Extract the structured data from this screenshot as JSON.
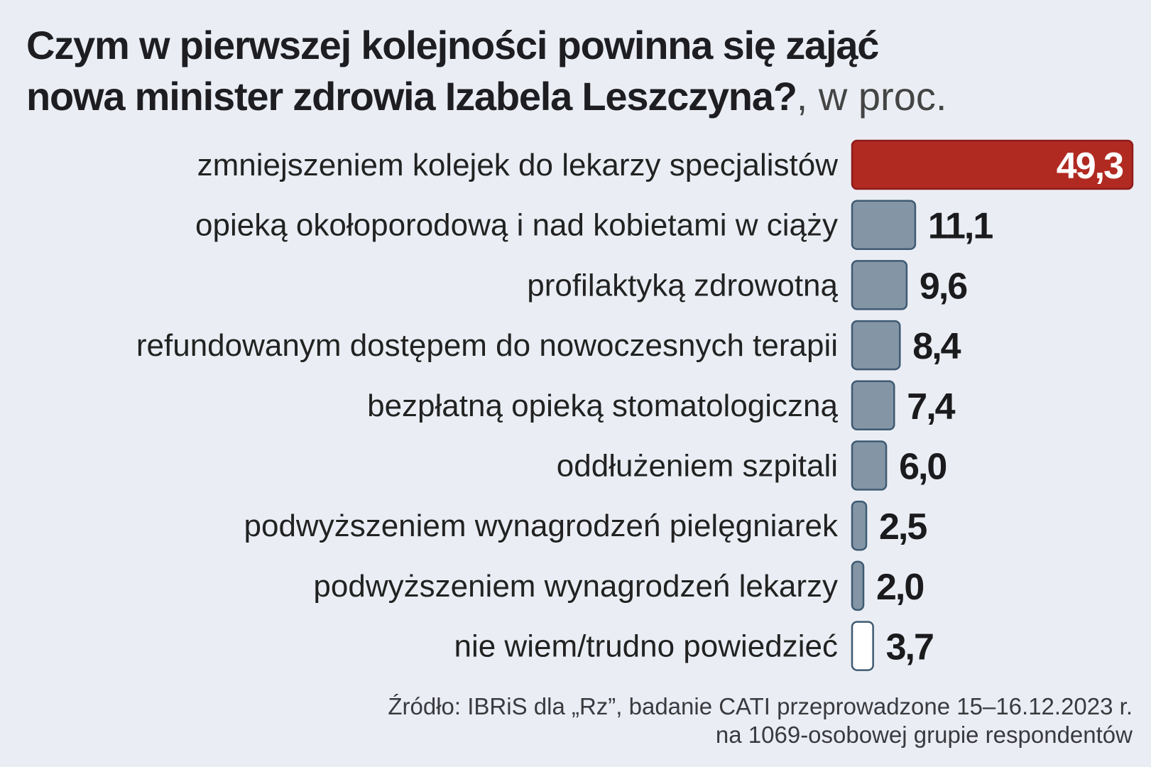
{
  "chart_data": {
    "type": "bar",
    "orientation": "horizontal",
    "title": "Czym w pierwszej kolejności powinna  się zająć nowa minister zdrowia Izabela Leszczyna?",
    "title_unit": ", w proc.",
    "categories": [
      "zmniejszeniem kolejek do lekarzy specjalistów",
      "opieką okołoporodową i nad kobietami w ciąży",
      "profilaktyką zdrowotną",
      "refundowanym dostępem do nowoczesnych terapii",
      "bezpłatną opieką stomatologiczną",
      "oddłużeniem szpitali",
      "podwyższeniem wynagrodzeń pielęgniarek",
      "podwyższeniem wynagrodzeń lekarzy",
      "nie wiem/trudno powiedzieć"
    ],
    "values": [
      49.3,
      11.1,
      9.6,
      8.4,
      7.4,
      6.0,
      2.5,
      2.0,
      3.7
    ],
    "value_labels": [
      "49,3",
      "11,1",
      "9,6",
      "8,4",
      "7,4",
      "6,0",
      "2,5",
      "2,0",
      "3,7"
    ],
    "colors": [
      "#b02a22",
      "#8496a6",
      "#8496a6",
      "#8496a6",
      "#8496a6",
      "#8496a6",
      "#8496a6",
      "#8496a6",
      "#ffffff"
    ],
    "xlabel": "",
    "ylabel": "",
    "xlim": [
      0,
      49.3
    ],
    "grid": false
  },
  "title": {
    "line1": "Czym w pierwszej kolejności powinna  się zająć",
    "line2": "nowa minister zdrowia Izabela Leszczyna?",
    "unit": ", w proc."
  },
  "source": {
    "line1": "Źródło: IBRiS dla „Rz”, badanie CATI przeprowadzone 15–16.12.2023 r.",
    "line2": "na 1069-osobowej grupie respondentów"
  }
}
